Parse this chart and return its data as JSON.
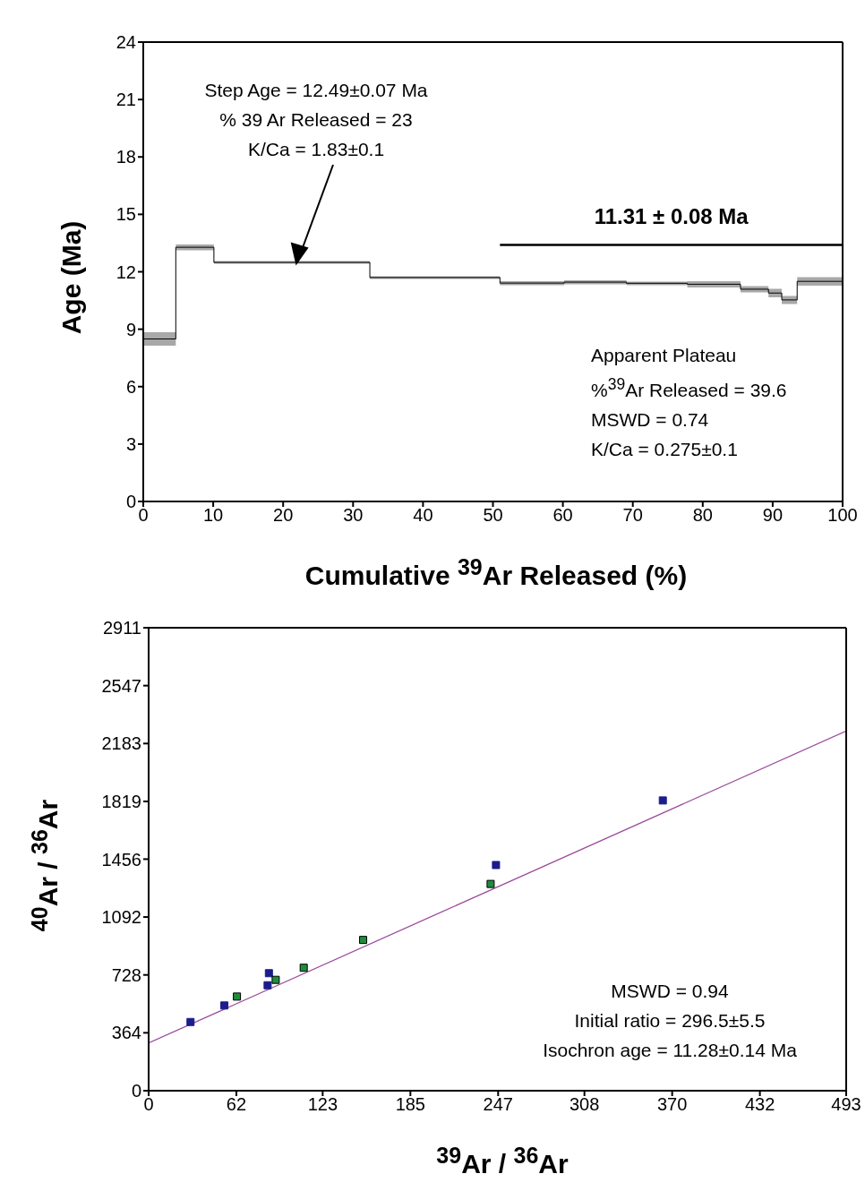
{
  "chart_data": [
    {
      "type": "step",
      "xlabel": "Cumulative $^{39}$Ar Released (%)",
      "ylabel": "Age (Ma)",
      "xlim": [
        0,
        100
      ],
      "xticks": [
        0,
        10,
        20,
        30,
        40,
        50,
        60,
        70,
        80,
        90,
        100
      ],
      "ylim": [
        0,
        24
      ],
      "yticks": [
        0,
        3,
        6,
        9,
        12,
        15,
        18,
        21,
        24
      ],
      "x": [
        0,
        4.65,
        10.1,
        32.4,
        51,
        60.2,
        69.1,
        77.8,
        85.4,
        89.4,
        91.3,
        93.5,
        100
      ],
      "series": [
        {
          "color": "#000000",
          "values": [
            8.49,
            13.28,
            12.49,
            11.7,
            11.41,
            11.46,
            11.4,
            11.35,
            11.09,
            10.89,
            10.53,
            11.5,
            11.5
          ],
          "lower": [
            8.14,
            13.12,
            12.42,
            11.63,
            11.3,
            11.35,
            11.3,
            11.18,
            10.92,
            10.67,
            10.32,
            11.27,
            11.27
          ],
          "upper": [
            8.84,
            13.43,
            12.56,
            11.77,
            11.51,
            11.56,
            11.49,
            11.51,
            11.25,
            11.11,
            10.74,
            11.72,
            11.72
          ]
        },
        {
          "type": "line",
          "color": "#000000",
          "x": [
            51,
            100
          ],
          "values": [
            13.4,
            13.4
          ]
        }
      ],
      "annotations": [
        "Step Age = 12.49±0.07 Ma\n% 39 Ar Released = 23\nK/Ca = 1.83±0.1",
        {
          "text": "11.31 ± 0.08 Ma",
          "x": 75.5,
          "y": 13.4
        },
        "Apparent Plateau\n%$^{39}$Ar Released = 39.6\nMSWD = 0.74\nK/Ca = 0.275±0.1"
      ]
    },
    {
      "type": "scatter",
      "xlabel": "$^{39}$Ar / $^{36}$Ar",
      "ylabel": "$^{40}$Ar / $^{36}$Ar",
      "xlim": [
        0,
        493
      ],
      "xticks": [
        0,
        62,
        123,
        185,
        247,
        308,
        370,
        432,
        493
      ],
      "ylim": [
        0,
        2911
      ],
      "yticks": [
        0,
        364,
        728,
        1092,
        1456,
        1819,
        2183,
        2547,
        2911
      ],
      "series": [
        {
          "type": "scatter",
          "color": "#1c1c8c",
          "marker": "square",
          "x": [
            29.6,
            53.5,
            84.1,
            85,
            245.5,
            363.4
          ],
          "values": [
            432,
            536,
            663,
            739,
            1419,
            1825
          ]
        },
        {
          "color": "#1e8c3c",
          "marker": "square",
          "x": [
            62.4,
            89.8,
            109.6,
            151.6,
            241.7
          ],
          "values": [
            592,
            697,
            773,
            948,
            1300
          ]
        },
        {
          "type": "line",
          "color": "#9b4c9b",
          "x": [
            0,
            493
          ],
          "values": [
            300,
            2262
          ]
        }
      ],
      "annotations": [
        "MSWD = 0.94\nInitial ratio = 296.5±5.5\nIsochron age = 11.28±0.14 Ma"
      ]
    }
  ]
}
